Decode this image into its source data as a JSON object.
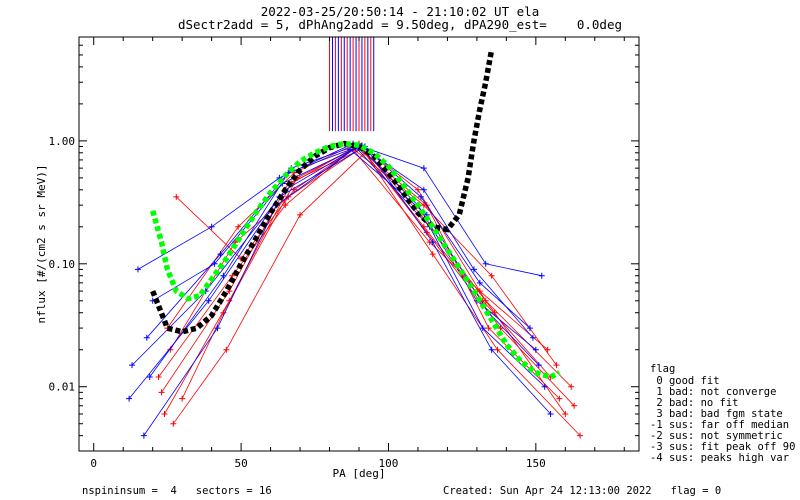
{
  "chart_data": {
    "type": "scatter",
    "title": "2022-03-25/20:50:14 - 21:10:02 UT ela",
    "subtitle": "dSectr2add = 5, dPhAng2add = 9.50deg, dPA290_est=    0.0deg",
    "xlabel": "PA [deg]",
    "ylabel": "nflux [#/(cm2 s sr MeV)]",
    "xlim": [
      -5,
      185
    ],
    "ylim": [
      0.003,
      7
    ],
    "y_scale": "log",
    "x_ticks": [
      0,
      50,
      100,
      150
    ],
    "y_ticks": [
      0.01,
      0.1,
      1.0
    ],
    "y_tick_labels": [
      "0.01",
      "0.10",
      "1.00"
    ],
    "colors": {
      "red_series": "#ff0000",
      "blue_series": "#0000ff",
      "black_fit": "#000000",
      "green_fit": "#00ff00"
    },
    "series": [
      {
        "name": "",
        "color": "red",
        "style": "plus-lines",
        "traces": [
          [
            [
              28,
              0.35
            ],
            [
              50,
              0.11
            ],
            [
              68,
              0.4
            ],
            [
              90,
              0.92
            ],
            [
              112,
              0.2
            ],
            [
              132,
              0.05
            ],
            [
              155,
              0.012
            ]
          ],
          [
            [
              24,
              0.006
            ],
            [
              46,
              0.05
            ],
            [
              67,
              0.45
            ],
            [
              89,
              0.9
            ],
            [
              113,
              0.3
            ],
            [
              134,
              0.03
            ],
            [
              158,
              0.008
            ]
          ],
          [
            [
              26,
              0.02
            ],
            [
              48,
              0.15
            ],
            [
              66,
              0.35
            ],
            [
              91,
              0.88
            ],
            [
              111,
              0.25
            ],
            [
              136,
              0.04
            ],
            [
              160,
              0.006
            ]
          ],
          [
            [
              30,
              0.008
            ],
            [
              44,
              0.04
            ],
            [
              69,
              0.5
            ],
            [
              88,
              0.85
            ],
            [
              114,
              0.15
            ],
            [
              131,
              0.06
            ],
            [
              154,
              0.02
            ]
          ],
          [
            [
              22,
              0.012
            ],
            [
              47,
              0.08
            ],
            [
              65,
              0.3
            ],
            [
              90,
              0.95
            ],
            [
              110,
              0.4
            ],
            [
              133,
              0.05
            ],
            [
              162,
              0.01
            ]
          ],
          [
            [
              27,
              0.005
            ],
            [
              45,
              0.02
            ],
            [
              70,
              0.25
            ],
            [
              92,
              0.8
            ],
            [
              115,
              0.12
            ],
            [
              137,
              0.02
            ],
            [
              165,
              0.004
            ]
          ],
          [
            [
              25,
              0.03
            ],
            [
              49,
              0.2
            ],
            [
              68,
              0.55
            ],
            [
              87,
              0.9
            ],
            [
              112,
              0.3
            ],
            [
              135,
              0.08
            ],
            [
              157,
              0.015
            ]
          ],
          [
            [
              23,
              0.009
            ],
            [
              46,
              0.06
            ],
            [
              66,
              0.45
            ],
            [
              91,
              0.86
            ],
            [
              113,
              0.18
            ],
            [
              138,
              0.03
            ],
            [
              163,
              0.007
            ]
          ]
        ]
      },
      {
        "name": "",
        "color": "blue",
        "style": "plus-lines",
        "traces": [
          [
            [
              15,
              0.09
            ],
            [
              40,
              0.2
            ],
            [
              63,
              0.5
            ],
            [
              88,
              0.95
            ],
            [
              112,
              0.6
            ],
            [
              133,
              0.1
            ],
            [
              152,
              0.08
            ]
          ],
          [
            [
              13,
              0.015
            ],
            [
              38,
              0.06
            ],
            [
              65,
              0.4
            ],
            [
              90,
              0.9
            ],
            [
              110,
              0.3
            ],
            [
              130,
              0.05
            ],
            [
              150,
              0.02
            ]
          ],
          [
            [
              17,
              0.004
            ],
            [
              42,
              0.03
            ],
            [
              62,
              0.3
            ],
            [
              89,
              0.88
            ],
            [
              114,
              0.2
            ],
            [
              132,
              0.03
            ],
            [
              153,
              0.01
            ]
          ],
          [
            [
              20,
              0.05
            ],
            [
              41,
              0.1
            ],
            [
              64,
              0.45
            ],
            [
              91,
              0.92
            ],
            [
              111,
              0.35
            ],
            [
              131,
              0.07
            ],
            [
              148,
              0.03
            ]
          ],
          [
            [
              18,
              0.025
            ],
            [
              43,
              0.12
            ],
            [
              66,
              0.55
            ],
            [
              87,
              0.85
            ],
            [
              113,
              0.25
            ],
            [
              134,
              0.04
            ],
            [
              151,
              0.015
            ]
          ],
          [
            [
              12,
              0.008
            ],
            [
              39,
              0.05
            ],
            [
              63,
              0.35
            ],
            [
              92,
              0.9
            ],
            [
              115,
              0.15
            ],
            [
              135,
              0.02
            ],
            [
              155,
              0.006
            ]
          ],
          [
            [
              19,
              0.012
            ],
            [
              44,
              0.08
            ],
            [
              67,
              0.6
            ],
            [
              90,
              0.93
            ],
            [
              112,
              0.4
            ],
            [
              129,
              0.09
            ],
            [
              149,
              0.025
            ]
          ]
        ]
      },
      {
        "name": "",
        "color": "black",
        "style": "thick-dotted",
        "x": [
          20,
          25,
          30,
          35,
          40,
          45,
          50,
          55,
          60,
          65,
          70,
          75,
          80,
          85,
          90,
          95,
          100,
          105,
          110,
          115,
          120,
          124,
          127,
          129,
          131,
          133,
          135
        ],
        "y": [
          0.06,
          0.03,
          0.028,
          0.03,
          0.038,
          0.06,
          0.1,
          0.16,
          0.26,
          0.4,
          0.58,
          0.75,
          0.88,
          0.95,
          0.9,
          0.75,
          0.55,
          0.38,
          0.26,
          0.2,
          0.19,
          0.25,
          0.5,
          1.0,
          1.8,
          3.0,
          5.5
        ]
      },
      {
        "name": "",
        "color": "green",
        "style": "thick-dotted",
        "x": [
          20,
          23,
          25,
          28,
          32,
          36,
          40,
          45,
          50,
          55,
          60,
          65,
          70,
          75,
          80,
          85,
          90,
          95,
          100,
          105,
          110,
          115,
          120,
          125,
          130,
          135,
          140,
          145,
          150,
          155,
          158
        ],
        "y": [
          0.27,
          0.15,
          0.09,
          0.06,
          0.052,
          0.055,
          0.075,
          0.11,
          0.17,
          0.26,
          0.38,
          0.52,
          0.68,
          0.8,
          0.9,
          0.95,
          0.92,
          0.8,
          0.62,
          0.44,
          0.3,
          0.2,
          0.13,
          0.085,
          0.055,
          0.035,
          0.022,
          0.016,
          0.013,
          0.012,
          0.013
        ]
      }
    ],
    "vertical_marker_lines": {
      "x_from": 80,
      "x_to": 95,
      "count": 16,
      "colors": [
        "red",
        "blue"
      ]
    },
    "flag_legend": {
      "heading": "flag",
      "items": [
        " 0 good fit",
        " 1 bad: not converge",
        " 2 bad: no fit",
        " 3 bad: bad fgm state",
        "-1 sus: far off median",
        "-2 sus: not symmetric",
        "-3 sus: fit peak off 90",
        "-4 sus: peaks high var"
      ]
    },
    "footer": {
      "left": "nspininsum =  4   sectors = 16",
      "right": "Created: Sun Apr 24 12:13:00 2022   flag = 0"
    }
  }
}
